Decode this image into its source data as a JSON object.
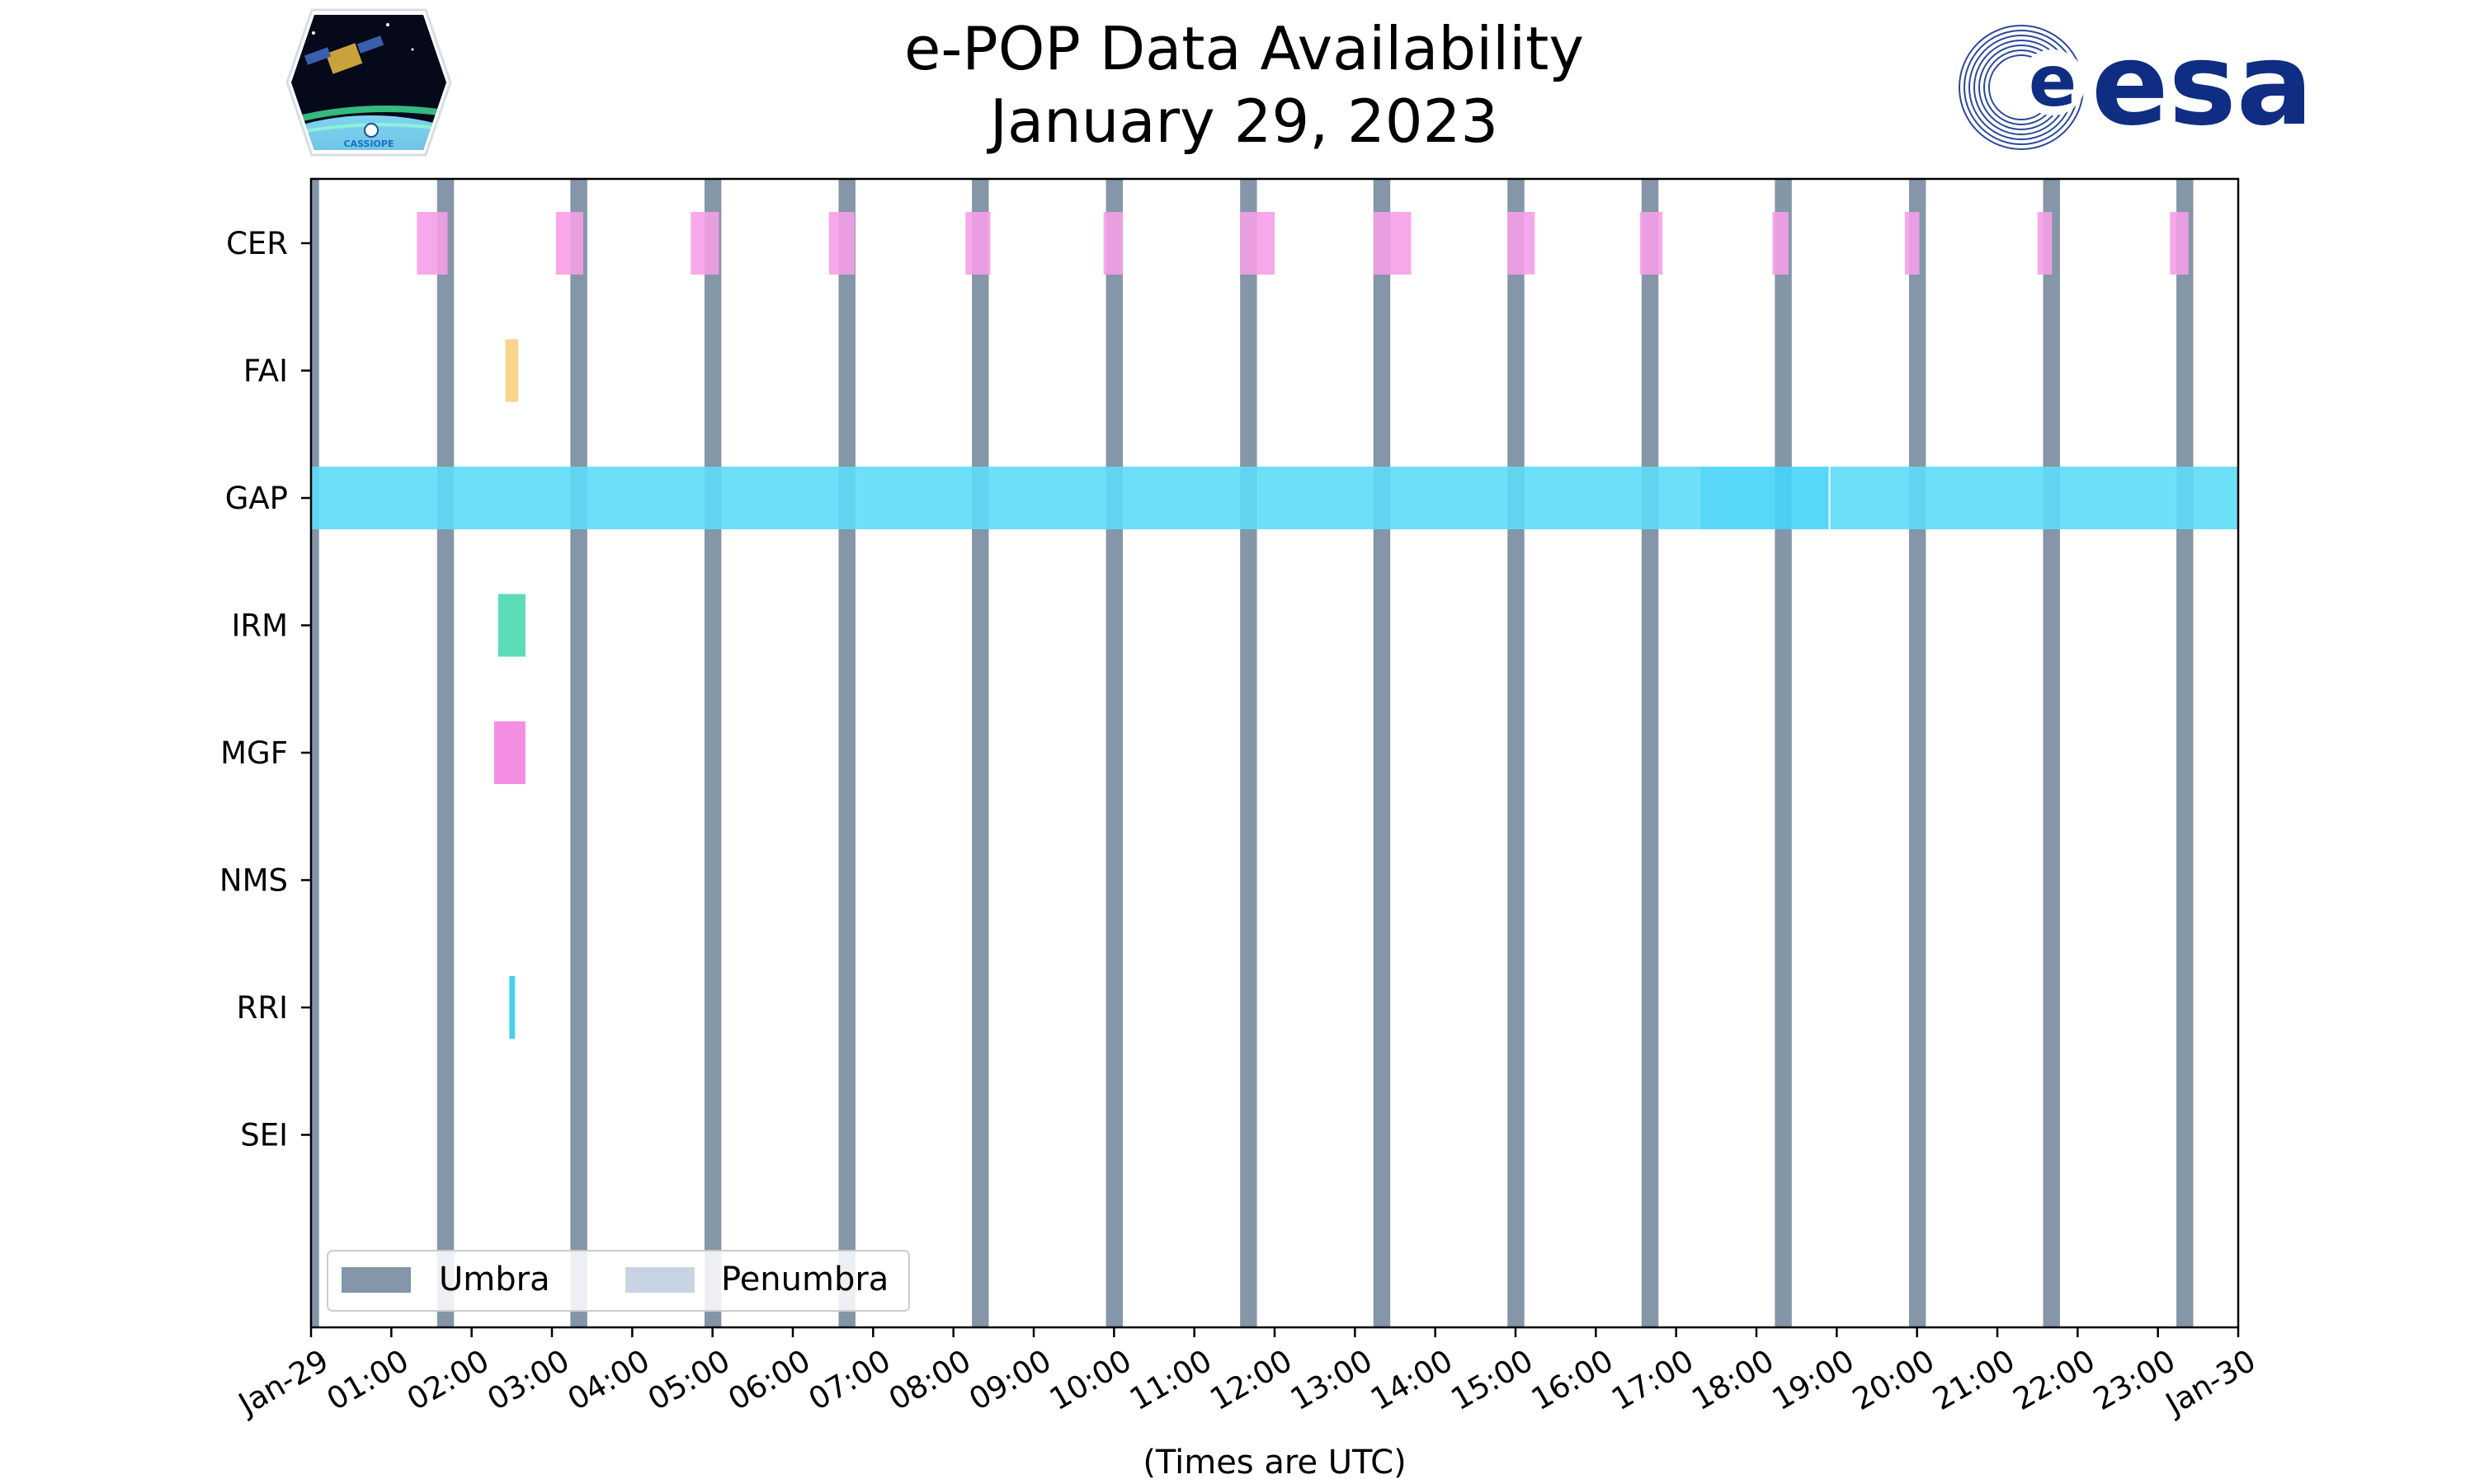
{
  "logos": {
    "left_text": "CASSIOPE",
    "right_text": "esa"
  },
  "colors": {
    "umbra": "#8496a8",
    "penumbra": "#c8d4e4",
    "CER": "#f59ee8",
    "FAI": "#f7cc78",
    "GAP": "#5ddcf7",
    "GAP_dense": "#45d4f8",
    "IRM": "#40d6ac",
    "MGF": "#f27ae0",
    "RRI": "#25c8e8",
    "esa_blue": "#0f2d82"
  },
  "chart_data": {
    "type": "timeline",
    "title": "e-POP Data Availability",
    "subtitle": "January 29, 2023",
    "xlabel": "(Times are UTC)",
    "ylabel": "",
    "xlim": [
      0,
      24
    ],
    "x_tick_values": [
      0,
      1,
      2,
      3,
      4,
      5,
      6,
      7,
      8,
      9,
      10,
      11,
      12,
      13,
      14,
      15,
      16,
      17,
      18,
      19,
      20,
      21,
      22,
      23,
      24
    ],
    "x_tick_labels": [
      "Jan-29",
      "01:00",
      "02:00",
      "03:00",
      "04:00",
      "05:00",
      "06:00",
      "07:00",
      "08:00",
      "09:00",
      "10:00",
      "11:00",
      "12:00",
      "13:00",
      "14:00",
      "15:00",
      "16:00",
      "17:00",
      "18:00",
      "19:00",
      "20:00",
      "21:00",
      "22:00",
      "23:00",
      "Jan-30"
    ],
    "categories": [
      "CER",
      "FAI",
      "GAP",
      "IRM",
      "MGF",
      "NMS",
      "RRI",
      "SEI"
    ],
    "umbra_intervals": [
      [
        0.0,
        0.1
      ],
      [
        1.57,
        1.78
      ],
      [
        3.23,
        3.44
      ],
      [
        4.9,
        5.11
      ],
      [
        6.57,
        6.78
      ],
      [
        8.23,
        8.44
      ],
      [
        9.9,
        10.11
      ],
      [
        11.57,
        11.78
      ],
      [
        13.23,
        13.44
      ],
      [
        14.9,
        15.11
      ],
      [
        16.57,
        16.78
      ],
      [
        18.23,
        18.44
      ],
      [
        19.9,
        20.11
      ],
      [
        21.57,
        21.78
      ],
      [
        23.23,
        23.44
      ]
    ],
    "series": [
      {
        "name": "CER",
        "intervals": [
          [
            1.32,
            1.7
          ],
          [
            3.05,
            3.39
          ],
          [
            4.73,
            5.08
          ],
          [
            6.45,
            6.77
          ],
          [
            8.15,
            8.46
          ],
          [
            9.87,
            10.11
          ],
          [
            11.57,
            12.0
          ],
          [
            13.23,
            13.7
          ],
          [
            14.9,
            15.24
          ],
          [
            16.55,
            16.83
          ],
          [
            18.2,
            18.4
          ],
          [
            19.85,
            20.03
          ],
          [
            21.5,
            21.68
          ],
          [
            23.15,
            23.38
          ]
        ]
      },
      {
        "name": "FAI",
        "intervals": [
          [
            2.42,
            2.58
          ]
        ]
      },
      {
        "name": "GAP",
        "intervals": [
          [
            0.0,
            17.3
          ],
          [
            17.3,
            18.9
          ],
          [
            18.92,
            24.0
          ]
        ]
      },
      {
        "name": "IRM",
        "intervals": [
          [
            2.33,
            2.67
          ]
        ]
      },
      {
        "name": "MGF",
        "intervals": [
          [
            2.28,
            2.67
          ]
        ]
      },
      {
        "name": "NMS",
        "intervals": []
      },
      {
        "name": "RRI",
        "intervals": [
          [
            2.47,
            2.54
          ]
        ]
      },
      {
        "name": "SEI",
        "intervals": []
      }
    ],
    "legend": {
      "location": "lower-left",
      "entries": [
        "Umbra",
        "Penumbra"
      ]
    }
  }
}
